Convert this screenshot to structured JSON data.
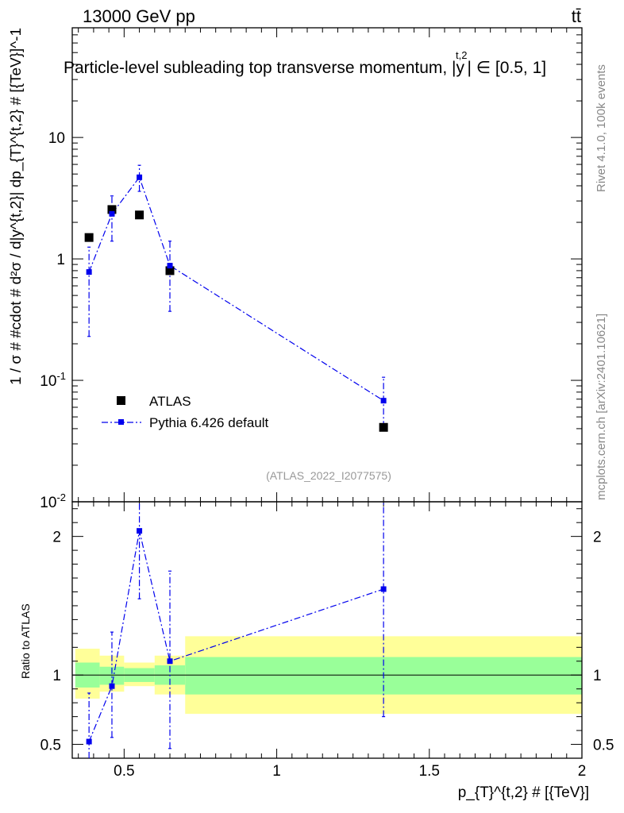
{
  "header": {
    "energy_label": "13000 GeV pp",
    "process_label": "tt̄",
    "title": "Particle-level subleading top transverse momentum, |y^{t,2}| ∈ [0.5, 1]",
    "title_main": "Particle-level subleading top transverse momentum, |",
    "title_var": "y",
    "title_sup": "t,2",
    "title_range": "| ∈ [0.5, 1]"
  },
  "side_labels": {
    "rivet": "Rivet 4.1.0,  100k events",
    "mcplots": "mcplots.cern.ch [arXiv:2401.10621]"
  },
  "analysis_id": "(ATLAS_2022_I2077575)",
  "legend": {
    "data_label": "ATLAS",
    "mc_label": "Pythia 6.426 default"
  },
  "colors": {
    "data": "#000000",
    "mc": "#0000ee",
    "band_inner": "#99ff99",
    "band_outer": "#ffff99"
  },
  "chart_data": [
    {
      "type": "scatter",
      "panel": "main",
      "yscale": "log",
      "xlim": [
        0.33,
        2.0
      ],
      "ylim": [
        0.01,
        80
      ],
      "ylabel": "1 / σ # #cdot # d^{2}σ / d|y^{t,2}| dp_{T}^{t,2} # [{TeV}^{-1}]",
      "ylabel_text": "1 / σ # #cdot # d²σ / d|y^{t,2}| dp_{T}^{t,2} # [{TeV}]^-1",
      "ytick_labels": [
        "10^{-2}",
        "10^{-1}",
        "1",
        "10"
      ],
      "yticks": [
        0.01,
        0.1,
        1,
        10
      ],
      "series": [
        {
          "name": "ATLAS",
          "style": "square-marker",
          "x": [
            0.385,
            0.46,
            0.55,
            0.65,
            1.35
          ],
          "y": [
            1.5,
            2.55,
            2.3,
            0.8,
            0.041
          ]
        },
        {
          "name": "Pythia 6.426 default",
          "style": "dash-dot-line",
          "x": [
            0.385,
            0.46,
            0.55,
            0.65,
            1.35
          ],
          "y": [
            0.78,
            2.35,
            4.7,
            0.88,
            0.068
          ],
          "yerr_low": [
            0.23,
            1.4,
            3.6,
            0.37,
            0.041
          ],
          "yerr_high": [
            1.25,
            3.3,
            5.9,
            1.4,
            0.106
          ]
        }
      ]
    },
    {
      "type": "scatter",
      "panel": "ratio",
      "yscale": "linear",
      "xlim": [
        0.33,
        2.0
      ],
      "ylim": [
        0.4,
        2.25
      ],
      "ylabel": "Ratio to ATLAS",
      "xlabel": "p_{T}^{t,2} # [{TeV}]",
      "xticks": [
        0.5,
        1,
        1.5,
        2
      ],
      "xtick_labels": [
        "0.5",
        "1",
        "1.5",
        "2"
      ],
      "yticks": [
        0.5,
        1,
        2
      ],
      "ytick_labels": [
        "0.5",
        "1",
        "2"
      ],
      "bands": [
        {
          "x0": 0.34,
          "x1": 0.42,
          "inner": [
            0.91,
            1.09
          ],
          "outer": [
            0.83,
            1.19
          ]
        },
        {
          "x0": 0.42,
          "x1": 0.5,
          "inner": [
            0.93,
            1.06
          ],
          "outer": [
            0.88,
            1.14
          ]
        },
        {
          "x0": 0.5,
          "x1": 0.6,
          "inner": [
            0.95,
            1.05
          ],
          "outer": [
            0.92,
            1.09
          ]
        },
        {
          "x0": 0.6,
          "x1": 0.7,
          "inner": [
            0.93,
            1.07
          ],
          "outer": [
            0.86,
            1.14
          ]
        },
        {
          "x0": 0.7,
          "x1": 2.0,
          "inner": [
            0.86,
            1.13
          ],
          "outer": [
            0.72,
            1.28
          ]
        }
      ],
      "series": [
        {
          "name": "Pythia 6.426 default",
          "x": [
            0.385,
            0.46,
            0.55,
            0.65,
            1.35
          ],
          "y": [
            0.52,
            0.92,
            2.04,
            1.1,
            1.62
          ],
          "yerr_low": [
            0.3,
            0.55,
            1.55,
            0.47,
            0.7
          ],
          "yerr_high": [
            0.87,
            1.31,
            2.3,
            1.75,
            2.25
          ]
        }
      ]
    }
  ]
}
